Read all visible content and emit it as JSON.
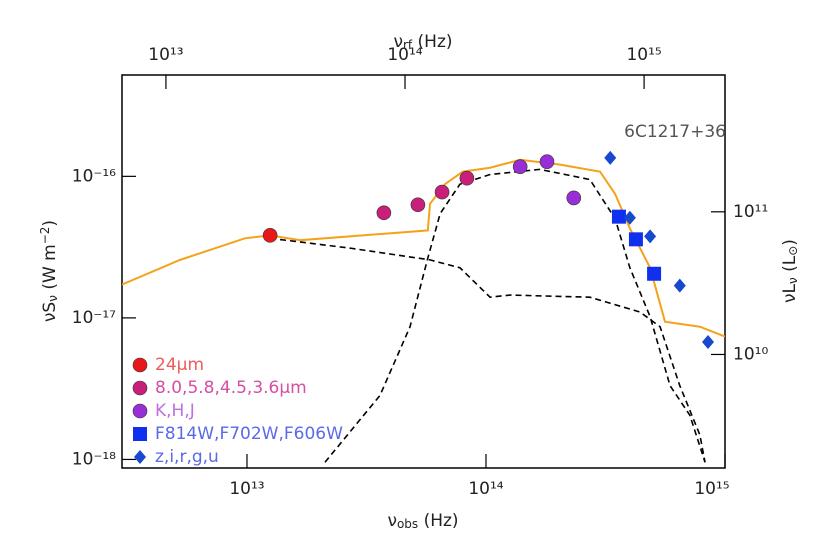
{
  "chart_data": {
    "type": "scatter",
    "xscale": "log",
    "yscale": "log",
    "annotation": "6C1217+36",
    "xlabel": [
      {
        "text": "ν"
      },
      {
        "text": "obs",
        "sub": true
      },
      {
        "text": " (Hz)"
      }
    ],
    "x2label": [
      {
        "text": "ν"
      },
      {
        "text": "rf",
        "sub": true
      },
      {
        "text": " (Hz)"
      }
    ],
    "ylabel": [
      {
        "text": "νS"
      },
      {
        "text": "ν",
        "sub": true
      },
      {
        "text": " (W m"
      },
      {
        "text": "−2",
        "sup": true
      },
      {
        "text": ")"
      }
    ],
    "y2label": [
      {
        "text": "νL"
      },
      {
        "text": "ν",
        "sub": true
      },
      {
        "text": "  (L"
      },
      {
        "text": "⊙",
        "sub": true
      },
      {
        "text": ")"
      }
    ],
    "xlim": [
      3000000000000.0,
      1000000000000000.0
    ],
    "xticks": [
      {
        "value": 10000000000000.0,
        "label": "10¹³"
      },
      {
        "value": 100000000000000.0,
        "label": "10¹⁴"
      },
      {
        "value": 1000000000000000.0,
        "label": "10¹⁵"
      }
    ],
    "x2lim": [
      6550000000000.0,
      2180000000000000.0
    ],
    "x2ticks": [
      {
        "value": 10000000000000.0,
        "label": "10¹³"
      },
      {
        "value": 100000000000000.0,
        "label": "10¹⁴"
      },
      {
        "value": 1000000000000000.0,
        "label": "10¹⁵"
      }
    ],
    "ylim": [
      8.7e-19,
      5.2e-16
    ],
    "yticks": [
      {
        "value": 1e-18,
        "label": "10⁻¹⁸"
      },
      {
        "value": 1e-17,
        "label": "10⁻¹⁷"
      },
      {
        "value": 1e-16,
        "label": "10⁻¹⁶"
      }
    ],
    "y2lim": [
      1600000000.0,
      910000000000.0
    ],
    "y2ticks": [
      {
        "value": 10000000000.0,
        "label": "10¹⁰"
      },
      {
        "value": 100000000000.0,
        "label": "10¹¹"
      }
    ],
    "lines": [
      {
        "color": "#f5a21b",
        "dash": false,
        "x": [
          3000000000000.0,
          5250000000000.0,
          9800000000000.0,
          12500000000000.0,
          16700000000000.0,
          57100000000000.0,
          58300000000000.0,
          67300000000000.0,
          80000000000000.0,
          104000000000000.0,
          139000000000000.0,
          204000000000000.0,
          300000000000000.0,
          347000000000000.0,
          400000000000000.0,
          486000000000000.0,
          561000000000000.0,
          785000000000000.0,
          1000000000000000.0
        ],
        "y": [
          1.72e-17,
          2.57e-17,
          3.65e-17,
          3.83e-17,
          3.54e-17,
          4.15e-17,
          6.39e-17,
          8.8e-17,
          1.08e-16,
          1.15e-16,
          1.31e-16,
          1.21e-16,
          1.08e-16,
          7.5e-17,
          4.29e-17,
          2.26e-17,
          9.4e-18,
          8.66e-18,
          7.38e-18
        ]
      },
      {
        "color": "#000000",
        "dash": true,
        "x": [
          12500000000000.0,
          27000000000000.0,
          58300000000000.0,
          77800000000000.0,
          104000000000000.0,
          126000000000000.0,
          272000000000000.0,
          441000000000000.0,
          535000000000000.0,
          647000000000000.0,
          785000000000000.0,
          825000000000000.0
        ],
        "y": [
          3.65e-17,
          3.11e-17,
          2.57e-17,
          2.26e-17,
          1.4e-17,
          1.45e-17,
          1.4e-17,
          1.1e-17,
          8.66e-18,
          3.32e-18,
          1.49e-18,
          9.55e-19
        ]
      },
      {
        "color": "#000000",
        "dash": true,
        "x": [
          21200000000000.0,
          36000000000000.0,
          48100000000000.0,
          57100000000000.0,
          64300000000000.0,
          77800000000000.0,
          104000000000000.0,
          168000000000000.0,
          272000000000000.0,
          347000000000000.0,
          400000000000000.0,
          486000000000000.0,
          589000000000000.0,
          713000000000000.0,
          825000000000000.0
        ],
        "y": [
          9.55e-19,
          2.83e-18,
          8.66e-18,
          2.65e-17,
          5.45e-17,
          8.8e-17,
          1.03e-16,
          1.12e-16,
          9.5e-17,
          5.02e-17,
          2.26e-17,
          1.02e-17,
          3.32e-18,
          2.05e-18,
          9.55e-19
        ]
      }
    ],
    "series": [
      {
        "name": "24μm",
        "color": "#e81818",
        "label_color": "#f05a5a",
        "marker": "circle",
        "x": [
          12500000000000.0
        ],
        "values": [
          3.83e-17
        ]
      },
      {
        "name": "8.0,5.8,4.5,3.6μm",
        "color": "#c8207a",
        "label_color": "#d64ea2",
        "marker": "circle",
        "x": [
          37400000000000.0,
          51900000000000.0,
          65500000000000.0,
          83200000000000.0
        ],
        "values": [
          5.53e-17,
          6.3e-17,
          7.74e-17,
          9.7e-17
        ]
      },
      {
        "name": "K,H,J",
        "color": "#9a2ed6",
        "label_color": "#c070e0",
        "marker": "circle",
        "x": [
          139000000000000.0,
          180000000000000.0,
          233000000000000.0
        ],
        "values": [
          1.17e-16,
          1.27e-16,
          7.04e-17
        ]
      },
      {
        "name": "F814W,F702W,F606W",
        "color": "#1030f0",
        "label_color": "#5a6ae8",
        "marker": "square",
        "x": [
          360000000000000.0,
          424000000000000.0,
          505000000000000.0
        ],
        "values": [
          5.19e-17,
          3.59e-17,
          2.05e-17
        ]
      },
      {
        "name": "z,i,r,g,u",
        "color": "#1848d0",
        "label_color": "#5a6ae8",
        "marker": "diamond",
        "x": [
          331000000000000.0,
          400000000000000.0,
          486000000000000.0,
          647000000000000.0,
          849000000000000.0
        ],
        "values": [
          1.35e-16,
          5.1e-17,
          3.77e-17,
          1.69e-17,
          6.76e-18
        ]
      }
    ]
  }
}
